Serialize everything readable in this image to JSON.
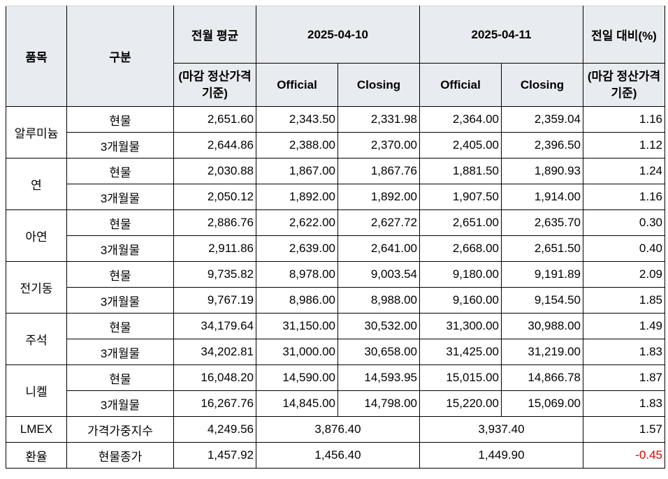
{
  "header": {
    "item": "품목",
    "category": "구분",
    "prev_month_avg": "전월 평균",
    "prev_month_avg_note": "(마감 정산가격 기준)",
    "date1": "2025-04-10",
    "date2": "2025-04-11",
    "change": "전일 대비(%)",
    "change_note": "(마감 정산가격 기준)",
    "official": "Official",
    "closing": "Closing"
  },
  "metals": [
    {
      "name": "알루미늄",
      "rows": [
        {
          "type": "현물",
          "avg": "2,651.60",
          "d1_official": "2,343.50",
          "d1_closing": "2,331.98",
          "d2_official": "2,364.00",
          "d2_closing": "2,359.04",
          "change": "1.16"
        },
        {
          "type": "3개월물",
          "avg": "2,644.86",
          "d1_official": "2,388.00",
          "d1_closing": "2,370.00",
          "d2_official": "2,405.00",
          "d2_closing": "2,396.50",
          "change": "1.12"
        }
      ]
    },
    {
      "name": "연",
      "rows": [
        {
          "type": "현물",
          "avg": "2,030.88",
          "d1_official": "1,867.00",
          "d1_closing": "1,867.76",
          "d2_official": "1,881.50",
          "d2_closing": "1,890.93",
          "change": "1.24"
        },
        {
          "type": "3개월물",
          "avg": "2,050.12",
          "d1_official": "1,892.00",
          "d1_closing": "1,892.00",
          "d2_official": "1,907.50",
          "d2_closing": "1,914.00",
          "change": "1.16"
        }
      ]
    },
    {
      "name": "아연",
      "rows": [
        {
          "type": "현물",
          "avg": "2,886.76",
          "d1_official": "2,622.00",
          "d1_closing": "2,627.72",
          "d2_official": "2,651.00",
          "d2_closing": "2,635.70",
          "change": "0.30"
        },
        {
          "type": "3개월물",
          "avg": "2,911.86",
          "d1_official": "2,639.00",
          "d1_closing": "2,641.00",
          "d2_official": "2,668.00",
          "d2_closing": "2,651.50",
          "change": "0.40"
        }
      ]
    },
    {
      "name": "전기동",
      "rows": [
        {
          "type": "현물",
          "avg": "9,735.82",
          "d1_official": "8,978.00",
          "d1_closing": "9,003.54",
          "d2_official": "9,180.00",
          "d2_closing": "9,191.89",
          "change": "2.09"
        },
        {
          "type": "3개월물",
          "avg": "9,767.19",
          "d1_official": "8,986.00",
          "d1_closing": "8,988.00",
          "d2_official": "9,160.00",
          "d2_closing": "9,154.50",
          "change": "1.85"
        }
      ]
    },
    {
      "name": "주석",
      "rows": [
        {
          "type": "현물",
          "avg": "34,179.64",
          "d1_official": "31,150.00",
          "d1_closing": "30,532.00",
          "d2_official": "31,300.00",
          "d2_closing": "30,988.00",
          "change": "1.49"
        },
        {
          "type": "3개월물",
          "avg": "34,202.81",
          "d1_official": "31,000.00",
          "d1_closing": "30,658.00",
          "d2_official": "31,425.00",
          "d2_closing": "31,219.00",
          "change": "1.83"
        }
      ]
    },
    {
      "name": "니켈",
      "rows": [
        {
          "type": "현물",
          "avg": "16,048.20",
          "d1_official": "14,590.00",
          "d1_closing": "14,593.95",
          "d2_official": "15,015.00",
          "d2_closing": "14,866.78",
          "change": "1.87"
        },
        {
          "type": "3개월물",
          "avg": "16,267.76",
          "d1_official": "14,845.00",
          "d1_closing": "14,798.00",
          "d2_official": "15,220.00",
          "d2_closing": "15,069.00",
          "change": "1.83"
        }
      ]
    }
  ],
  "lmex": {
    "name": "LMEX",
    "type": "가격가중지수",
    "avg": "4,249.56",
    "d1": "3,876.40",
    "d2": "3,937.40",
    "change": "1.57"
  },
  "fx": {
    "name": "환율",
    "type": "현물종가",
    "avg": "1,457.92",
    "d1": "1,456.40",
    "d2": "1,449.90",
    "change": "-0.45"
  },
  "colors": {
    "header_bg": "#e8ebef",
    "negative": "#e00000"
  }
}
